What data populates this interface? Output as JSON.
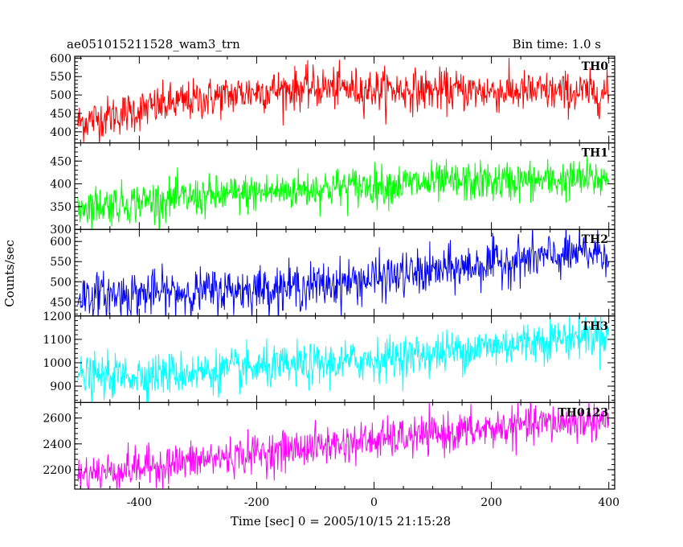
{
  "title_left": "ae051015211528_wam3_trn",
  "title_right": "Bin time: 1.0 s",
  "chart_data": {
    "type": "line",
    "xlabel": "Time [sec] 0 = 2005/10/15 21:15:28",
    "ylabel": "Counts/sec",
    "xlim": [
      -510,
      410
    ],
    "x_ticks": [
      -400,
      -200,
      0,
      200,
      400
    ],
    "grid": false,
    "panels": [
      {
        "name": "TH0",
        "color": "#ff0000",
        "ylim": [
          370,
          605
        ],
        "y_ticks": [
          400,
          450,
          500,
          550,
          600
        ],
        "trend": [
          [
            -505,
            425
          ],
          [
            -350,
            475
          ],
          [
            -200,
            510
          ],
          [
            -100,
            520
          ],
          [
            0,
            515
          ],
          [
            200,
            510
          ],
          [
            400,
            505
          ]
        ],
        "noise": 28
      },
      {
        "name": "TH1",
        "color": "#00ff00",
        "ylim": [
          300,
          490
        ],
        "y_ticks": [
          300,
          350,
          400,
          450
        ],
        "trend": [
          [
            -505,
            350
          ],
          [
            -300,
            370
          ],
          [
            -100,
            390
          ],
          [
            100,
            402
          ],
          [
            400,
            410
          ]
        ],
        "noise": 22
      },
      {
        "name": "TH2",
        "color": "#0000ff",
        "ylim": [
          415,
          630
        ],
        "y_ticks": [
          450,
          500,
          550,
          600
        ],
        "trend": [
          [
            -505,
            465
          ],
          [
            -300,
            475
          ],
          [
            -100,
            490
          ],
          [
            100,
            525
          ],
          [
            250,
            555
          ],
          [
            400,
            575
          ]
        ],
        "noise": 28
      },
      {
        "name": "TH3",
        "color": "#00ffff",
        "ylim": [
          830,
          1200
        ],
        "y_ticks": [
          900,
          1000,
          1100,
          1200
        ],
        "trend": [
          [
            -505,
            935
          ],
          [
            -300,
            960
          ],
          [
            -100,
            990
          ],
          [
            100,
            1040
          ],
          [
            300,
            1100
          ],
          [
            400,
            1125
          ]
        ],
        "noise": 45
      },
      {
        "name": "TH0123",
        "color": "#ff00ff",
        "ylim": [
          2050,
          2720
        ],
        "y_ticks": [
          2200,
          2400,
          2600
        ],
        "trend": [
          [
            -505,
            2160
          ],
          [
            -300,
            2270
          ],
          [
            -100,
            2380
          ],
          [
            100,
            2470
          ],
          [
            300,
            2560
          ],
          [
            400,
            2590
          ]
        ],
        "noise": 75
      }
    ]
  }
}
